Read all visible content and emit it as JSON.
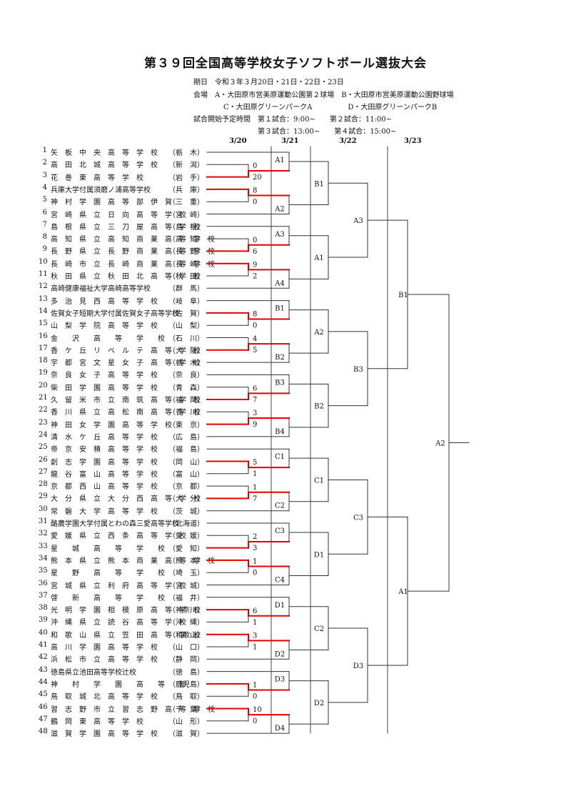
{
  "title": "第３９回全国高等学校女子ソフトボール選抜大会",
  "info": [
    "期日　令和３年３月20日・21日・22日・23日",
    "会場　A・大田原市営美原運動公園第２球場　B・大田原市営美原運動公園野球場",
    "C・大田原グリーンパークA　　　　　D・大田原グリーンパークB",
    "試合開始予定時間　第１試合：9:00~　　第２試合：11:00~",
    "第３試合：13:00~　　第４試合：15:00~"
  ],
  "days": [
    "3/20",
    "3/21",
    "3/22",
    "3/23"
  ],
  "teams": [
    {
      "no": "1",
      "name": "矢　板　中　央　高　等　学　校",
      "pref": "（栃　木）"
    },
    {
      "no": "2",
      "name": "高　田　北　城　高　等　学　校",
      "pref": "（新　潟）"
    },
    {
      "no": "3",
      "name": "花　巻　東　高　等　学　校",
      "pref": "（岩　手）"
    },
    {
      "no": "4",
      "name": "兵庫大学付属須磨ノ浦高等学校",
      "pref": "（兵　庫）"
    },
    {
      "no": "5",
      "name": "神　村　学　園　高　等　部　伊　賀",
      "pref": "（三　重）"
    },
    {
      "no": "6",
      "name": "宮　崎　県　立　日　向　高　等　学　校",
      "pref": "（宮　崎）"
    },
    {
      "no": "7",
      "name": "島　根　県　立　三　刀　屋　高　等　学　校",
      "pref": "（島　根）"
    },
    {
      "no": "8",
      "name": "高　知　県　立　高　知　商　業　高　等　学　校",
      "pref": "（高　知）"
    },
    {
      "no": "9",
      "name": "長　野　県　立　長　野　商　業　高　等　学　校",
      "pref": "（長　野）"
    },
    {
      "no": "10",
      "name": "長　崎　市　立　長　崎　商　業　高　等　学　校",
      "pref": "（長　崎）"
    },
    {
      "no": "11",
      "name": "秋　田　県　立　秋　田　北　高　等　学　校",
      "pref": "（秋　田）"
    },
    {
      "no": "12",
      "name": "高崎健康福祉大学高崎高等学校",
      "pref": "（群　馬）"
    },
    {
      "no": "13",
      "name": "多　治　見　西　高　等　学　校",
      "pref": "（岐　阜）"
    },
    {
      "no": "14",
      "name": "佐賀女子短期大学付属佐賀女子高等学校",
      "pref": "（佐　賀）"
    },
    {
      "no": "15",
      "name": "山　梨　学　院　高　等　学　校",
      "pref": "（山　梨）"
    },
    {
      "no": "16",
      "name": "金　　沢　　高　　等　　学　　校",
      "pref": "（石　川）"
    },
    {
      "no": "17",
      "name": "香　ケ　丘　リ　ベ　ル　テ　高　等　学　校",
      "pref": "（大　阪）"
    },
    {
      "no": "18",
      "name": "宇　都　宮　文　星　女　子　高　等　学　校",
      "pref": "（栃　木）"
    },
    {
      "no": "19",
      "name": "奈　良　女　子　高　等　学　校",
      "pref": "（奈　良）"
    },
    {
      "no": "20",
      "name": "柴　田　学　園　高　等　学　校",
      "pref": "（青　森）"
    },
    {
      "no": "21",
      "name": "久　留　米　市　立　南　筑　高　等　学　校",
      "pref": "（福　岡）"
    },
    {
      "no": "22",
      "name": "香　川　県　立　高　松　南　高　等　学　校",
      "pref": "（香　川）"
    },
    {
      "no": "23",
      "name": "神　田　女　学　園　高　等　学　校",
      "pref": "（東　京）"
    },
    {
      "no": "24",
      "name": "清　水　ケ　丘　高　等　学　校",
      "pref": "（広　島）"
    },
    {
      "no": "25",
      "name": "帝　京　安　積　高　等　学　校",
      "pref": "（福　島）"
    },
    {
      "no": "26",
      "name": "創　志　学　園　高　等　学　校",
      "pref": "（岡　山）"
    },
    {
      "no": "27",
      "name": "龍　谷　富　山　高　等　学　校",
      "pref": "（富　山）"
    },
    {
      "no": "28",
      "name": "京　都　西　山　高　等　学　校",
      "pref": "（京　都）"
    },
    {
      "no": "29",
      "name": "大　分　県　立　大　分　西　高　等　学　校",
      "pref": "（大　分）"
    },
    {
      "no": "30",
      "name": "常　磐　大　学　高　等　学　校",
      "pref": "（茨　城）"
    },
    {
      "no": "31",
      "name": "酪農学園大学付属とわの森三愛高等学校",
      "pref": "（北海道）"
    },
    {
      "no": "32",
      "name": "愛　媛　県　立　西　条　高　等　学　校",
      "pref": "（愛　媛）"
    },
    {
      "no": "33",
      "name": "星　　城　　高　　等　　学　　校",
      "pref": "（愛　知）"
    },
    {
      "no": "34",
      "name": "熊　本　県　立　熊　本　商　業　高　等　学　校",
      "pref": "（熊　本）"
    },
    {
      "no": "35",
      "name": "星　　野　　高　　等　　学　　校",
      "pref": "（埼　玉）"
    },
    {
      "no": "36",
      "name": "宮　城　県　立　利　府　高　等　学　校",
      "pref": "（宮　城）"
    },
    {
      "no": "37",
      "name": "啓　　新　　高　　等　　学　　校",
      "pref": "（福　井）"
    },
    {
      "no": "38",
      "name": "光　明　学　園　相　模　原　高　等　学　校",
      "pref": "（神奈川）"
    },
    {
      "no": "39",
      "name": "沖　縄　県　立　読　谷　高　等　学　校",
      "pref": "（沖　縄）"
    },
    {
      "no": "40",
      "name": "和　歌　山　県　立　笠　田　高　等　学　校",
      "pref": "（和歌山）"
    },
    {
      "no": "41",
      "name": "高　川　学　園　高　等　学　校",
      "pref": "（山　口）"
    },
    {
      "no": "42",
      "name": "浜　松　市　立　高　等　学　校",
      "pref": "（静　岡）"
    },
    {
      "no": "43",
      "name": "徳島県立池田高等学校辻校",
      "pref": "（徳　島）"
    },
    {
      "no": "44",
      "name": "神　　村　　学　　園　　高　　等　　部",
      "pref": "（鹿児島）"
    },
    {
      "no": "45",
      "name": "鳥　取　城　北　高　等　学　校",
      "pref": "（鳥　取）"
    },
    {
      "no": "46",
      "name": "習　志　野　市　立　習　志　野　高　等　学　校",
      "pref": "（千　葉）"
    },
    {
      "no": "47",
      "name": "鶴　岡　東　高　等　学　校",
      "pref": "（山　形）"
    },
    {
      "no": "48",
      "name": "滋　賀　学　園　高　等　学　校",
      "pref": "（滋　賀）"
    }
  ],
  "first_round": [
    {
      "top": 2,
      "bot": 3,
      "scores": [
        "0",
        "20"
      ],
      "winner": "bot"
    },
    {
      "top": 4,
      "bot": 5,
      "scores": [
        "8",
        "0"
      ],
      "winner": "top"
    },
    {
      "top": 8,
      "bot": 9,
      "scores": [
        "0",
        "6"
      ],
      "winner": "bot"
    },
    {
      "top": 10,
      "bot": 11,
      "scores": [
        "9",
        "2"
      ],
      "winner": "top"
    },
    {
      "top": 14,
      "bot": 15,
      "scores": [
        "8",
        "0"
      ],
      "winner": "top"
    },
    {
      "top": 16,
      "bot": 17,
      "scores": [
        "4",
        "5"
      ],
      "winner": "bot"
    },
    {
      "top": 20,
      "bot": 21,
      "scores": [
        "6",
        "7"
      ],
      "winner": "bot"
    },
    {
      "top": 22,
      "bot": 23,
      "scores": [
        "3",
        "9"
      ],
      "winner": "bot"
    },
    {
      "top": 26,
      "bot": 27,
      "scores": [
        "5",
        "1"
      ],
      "winner": "top"
    },
    {
      "top": 28,
      "bot": 29,
      "scores": [
        "1",
        "7"
      ],
      "winner": "bot"
    },
    {
      "top": 32,
      "bot": 33,
      "scores": [
        "2",
        "3"
      ],
      "winner": "bot"
    },
    {
      "top": 34,
      "bot": 35,
      "scores": [
        "1",
        "0"
      ],
      "winner": "top"
    },
    {
      "top": 38,
      "bot": 39,
      "scores": [
        "6",
        "1"
      ],
      "winner": "top"
    },
    {
      "top": 40,
      "bot": 41,
      "scores": [
        "3",
        "1"
      ],
      "winner": "top"
    },
    {
      "top": 44,
      "bot": 45,
      "scores": [
        "1",
        "0"
      ],
      "winner": "top"
    },
    {
      "top": 46,
      "bot": 47,
      "scores": [
        "10",
        "0"
      ],
      "winner": "top"
    }
  ],
  "venues": {
    "round2": [
      "A1",
      "A2",
      "A3",
      "A4",
      "B1",
      "B2",
      "B3",
      "B4",
      "C1",
      "C2",
      "C3",
      "C4",
      "D1",
      "D2",
      "D3",
      "D4"
    ],
    "round3": [
      "B1",
      "A1",
      "A2",
      "B2",
      "C1",
      "D1",
      "C2",
      "D2"
    ],
    "quarter": [
      "A3",
      "B3",
      "C3",
      "D3"
    ],
    "semi": [
      "B1",
      "A1"
    ],
    "final": [
      "A2"
    ]
  },
  "colors": {
    "line": "#333333",
    "winner": "#e00000",
    "text": "#111111"
  }
}
